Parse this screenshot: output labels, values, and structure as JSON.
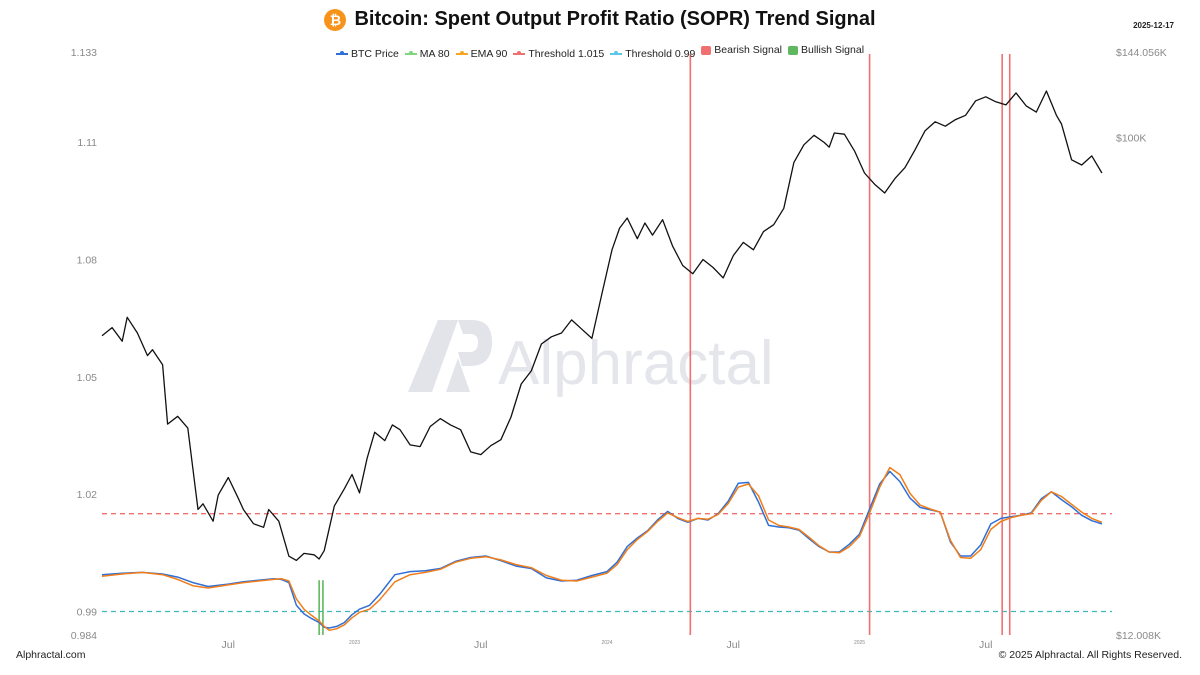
{
  "header": {
    "title": "Bitcoin: Spent Output Profit Ratio (SOPR) Trend Signal",
    "btc_symbol": "₿",
    "date": "2025-12-17"
  },
  "legend": [
    {
      "label": "BTC Price",
      "color": "#2F6FD6",
      "kind": "line"
    },
    {
      "label": "MA 80",
      "color": "#7ED67E",
      "kind": "line"
    },
    {
      "label": "EMA 90",
      "color": "#F5A623",
      "kind": "line"
    },
    {
      "label": "Threshold 1.015",
      "color": "#F07070",
      "kind": "line"
    },
    {
      "label": "Threshold 0.99",
      "color": "#5BC8E8",
      "kind": "line"
    },
    {
      "label": "Bearish Signal",
      "color": "#F07070",
      "kind": "box"
    },
    {
      "label": "Bullish Signal",
      "color": "#5FB85F",
      "kind": "box"
    }
  ],
  "watermark": "Alphractal",
  "footer": {
    "left": "Alphractal.com",
    "right": "© 2025 Alphractal. All Rights Reserved."
  },
  "chart_data": {
    "type": "line",
    "title": "Bitcoin: Spent Output Profit Ratio (SOPR) Trend Signal",
    "x_range": [
      2022.0,
      2026.0
    ],
    "left_axis": {
      "ylim": [
        0.984,
        1.133
      ],
      "ticks": [
        0.984,
        0.99,
        1.02,
        1.05,
        1.08,
        1.11,
        1.133
      ],
      "tick_labels": [
        "0.984",
        "0.99",
        "1.02",
        "1.05",
        "1.08",
        "1.11",
        "1.133"
      ]
    },
    "right_axis": {
      "scale": "log",
      "ylim": [
        12008,
        144056
      ],
      "ticks": [
        12008,
        100000,
        144056
      ],
      "tick_labels": [
        "$12.008K",
        "$100K",
        "$144.056K"
      ]
    },
    "x_ticks": [
      {
        "x": 2022.5,
        "label": "Jul",
        "small": false
      },
      {
        "x": 2023.0,
        "label": "2023",
        "small": true
      },
      {
        "x": 2023.5,
        "label": "Jul",
        "small": false
      },
      {
        "x": 2024.0,
        "label": "2024",
        "small": true
      },
      {
        "x": 2024.5,
        "label": "Jul",
        "small": false
      },
      {
        "x": 2025.0,
        "label": "2025",
        "small": true
      },
      {
        "x": 2025.5,
        "label": "Jul",
        "small": false
      }
    ],
    "thresholds": [
      {
        "name": "Threshold 1.015",
        "value": 1.015,
        "color": "#F07070"
      },
      {
        "name": "Threshold 0.99",
        "value": 0.99,
        "color": "#3CB8B8"
      }
    ],
    "series": [
      {
        "name": "BTC Price",
        "axis": "right",
        "color": "#111111",
        "x": [
          2022.0,
          2022.04,
          2022.08,
          2022.1,
          2022.14,
          2022.18,
          2022.2,
          2022.24,
          2022.26,
          2022.3,
          2022.34,
          2022.38,
          2022.4,
          2022.44,
          2022.46,
          2022.5,
          2022.54,
          2022.56,
          2022.6,
          2022.64,
          2022.66,
          2022.7,
          2022.74,
          2022.77,
          2022.8,
          2022.84,
          2022.86,
          2022.88,
          2022.92,
          2022.96,
          2022.99,
          2023.02,
          2023.05,
          2023.08,
          2023.12,
          2023.15,
          2023.18,
          2023.22,
          2023.26,
          2023.3,
          2023.34,
          2023.38,
          2023.42,
          2023.46,
          2023.5,
          2023.54,
          2023.58,
          2023.62,
          2023.66,
          2023.7,
          2023.74,
          2023.78,
          2023.82,
          2023.86,
          2023.9,
          2023.94,
          2023.98,
          2024.02,
          2024.05,
          2024.08,
          2024.12,
          2024.15,
          2024.18,
          2024.22,
          2024.26,
          2024.3,
          2024.34,
          2024.38,
          2024.42,
          2024.46,
          2024.5,
          2024.54,
          2024.58,
          2024.62,
          2024.66,
          2024.7,
          2024.74,
          2024.78,
          2024.82,
          2024.86,
          2024.88,
          2024.9,
          2024.94,
          2024.98,
          2025.02,
          2025.06,
          2025.1,
          2025.14,
          2025.18,
          2025.22,
          2025.26,
          2025.3,
          2025.34,
          2025.38,
          2025.42,
          2025.46,
          2025.5,
          2025.54,
          2025.58,
          2025.62,
          2025.66,
          2025.7,
          2025.74,
          2025.78,
          2025.8,
          2025.84,
          2025.88,
          2025.92,
          2025.96
        ],
        "values": [
          43000,
          44500,
          42000,
          46500,
          43500,
          39500,
          40500,
          38000,
          29500,
          30500,
          29000,
          20500,
          21000,
          19500,
          21800,
          23500,
          21500,
          20500,
          19300,
          19000,
          20500,
          19500,
          16800,
          16500,
          17000,
          16900,
          16600,
          17200,
          20800,
          22400,
          23800,
          22000,
          25500,
          28500,
          27500,
          29400,
          28800,
          27000,
          26800,
          29200,
          30200,
          29400,
          28800,
          26200,
          25900,
          26900,
          27600,
          30400,
          35000,
          37000,
          41500,
          42800,
          43500,
          46000,
          44200,
          42500,
          51500,
          62000,
          68000,
          71000,
          65000,
          69500,
          66000,
          70500,
          63000,
          58000,
          56000,
          59500,
          57500,
          55000,
          60500,
          64000,
          62000,
          67000,
          69000,
          74000,
          90000,
          97000,
          101000,
          98000,
          96000,
          102000,
          101500,
          94500,
          86000,
          82000,
          79000,
          84000,
          88000,
          95000,
          103000,
          107000,
          105000,
          108000,
          110000,
          117000,
          119000,
          116500,
          115000,
          121000,
          114500,
          111500,
          122000,
          110000,
          106000,
          91000,
          89000,
          92500,
          86000
        ]
      },
      {
        "name": "MA 80",
        "axis": "left",
        "color": "#2F6FD6",
        "x": [
          2022.0,
          2022.08,
          2022.16,
          2022.24,
          2022.3,
          2022.36,
          2022.42,
          2022.5,
          2022.56,
          2022.62,
          2022.68,
          2022.71,
          2022.74,
          2022.77,
          2022.8,
          2022.83,
          2022.86,
          2022.88,
          2022.9,
          2022.93,
          2022.96,
          2022.99,
          2023.02,
          2023.06,
          2023.1,
          2023.16,
          2023.22,
          2023.28,
          2023.34,
          2023.4,
          2023.46,
          2023.52,
          2023.58,
          2023.64,
          2023.7,
          2023.76,
          2023.82,
          2023.88,
          2023.94,
          2024.0,
          2024.04,
          2024.08,
          2024.12,
          2024.16,
          2024.2,
          2024.24,
          2024.28,
          2024.32,
          2024.36,
          2024.4,
          2024.44,
          2024.48,
          2024.52,
          2024.56,
          2024.6,
          2024.64,
          2024.68,
          2024.72,
          2024.76,
          2024.8,
          2024.84,
          2024.88,
          2024.92,
          2024.96,
          2025.0,
          2025.04,
          2025.08,
          2025.12,
          2025.16,
          2025.2,
          2025.24,
          2025.28,
          2025.32,
          2025.36,
          2025.4,
          2025.44,
          2025.48,
          2025.52,
          2025.56,
          2025.6,
          2025.64,
          2025.68,
          2025.72,
          2025.76,
          2025.8,
          2025.84,
          2025.88,
          2025.92,
          2025.96
        ],
        "values": [
          0.9994,
          0.9998,
          1.0,
          0.9996,
          0.9988,
          0.9974,
          0.9964,
          0.997,
          0.9976,
          0.998,
          0.9984,
          0.9982,
          0.9974,
          0.9916,
          0.9894,
          0.9882,
          0.9872,
          0.986,
          0.9858,
          0.9862,
          0.9872,
          0.9892,
          0.9906,
          0.9916,
          0.9944,
          0.9994,
          1.0002,
          1.0004,
          1.001,
          1.0028,
          1.0038,
          1.0042,
          1.003,
          1.0016,
          1.001,
          0.9986,
          0.9978,
          0.998,
          0.9992,
          1.0002,
          1.0026,
          1.0066,
          1.0088,
          1.0106,
          1.0134,
          1.0156,
          1.0138,
          1.0128,
          1.0138,
          1.0134,
          1.015,
          1.0182,
          1.0228,
          1.023,
          1.018,
          1.012,
          1.0116,
          1.0114,
          1.0108,
          1.0086,
          1.0066,
          1.0052,
          1.0052,
          1.0072,
          1.0098,
          1.0162,
          1.0226,
          1.0258,
          1.0232,
          1.019,
          1.0166,
          1.016,
          1.0154,
          1.0078,
          1.0042,
          1.0042,
          1.007,
          1.0124,
          1.0138,
          1.0142,
          1.0146,
          1.0152,
          1.0188,
          1.0206,
          1.0186,
          1.0168,
          1.0146,
          1.0132,
          1.0124
        ]
      },
      {
        "name": "EMA 90",
        "axis": "left",
        "color": "#F07D1A",
        "x": [
          2022.0,
          2022.08,
          2022.16,
          2022.24,
          2022.3,
          2022.36,
          2022.42,
          2022.5,
          2022.56,
          2022.62,
          2022.68,
          2022.71,
          2022.74,
          2022.77,
          2022.8,
          2022.83,
          2022.86,
          2022.88,
          2022.9,
          2022.93,
          2022.96,
          2022.99,
          2023.02,
          2023.06,
          2023.1,
          2023.16,
          2023.22,
          2023.28,
          2023.34,
          2023.4,
          2023.46,
          2023.52,
          2023.58,
          2023.64,
          2023.7,
          2023.76,
          2023.82,
          2023.88,
          2023.94,
          2024.0,
          2024.04,
          2024.08,
          2024.12,
          2024.16,
          2024.2,
          2024.24,
          2024.28,
          2024.32,
          2024.36,
          2024.4,
          2024.44,
          2024.48,
          2024.52,
          2024.56,
          2024.6,
          2024.64,
          2024.68,
          2024.72,
          2024.76,
          2024.8,
          2024.84,
          2024.88,
          2024.92,
          2024.96,
          2025.0,
          2025.04,
          2025.08,
          2025.12,
          2025.16,
          2025.2,
          2025.24,
          2025.28,
          2025.32,
          2025.36,
          2025.4,
          2025.44,
          2025.48,
          2025.52,
          2025.56,
          2025.6,
          2025.64,
          2025.68,
          2025.72,
          2025.76,
          2025.8,
          2025.84,
          2025.88,
          2025.92,
          2025.96
        ],
        "values": [
          0.999,
          0.9996,
          1.0,
          0.9994,
          0.9982,
          0.9966,
          0.996,
          0.9968,
          0.9974,
          0.9978,
          0.9982,
          0.9984,
          0.9978,
          0.9932,
          0.9906,
          0.989,
          0.9876,
          0.9862,
          0.9852,
          0.9856,
          0.9866,
          0.9884,
          0.9898,
          0.9906,
          0.993,
          0.9976,
          0.9994,
          1.0,
          1.0008,
          1.0026,
          1.0036,
          1.004,
          1.0032,
          1.002,
          1.0012,
          0.9992,
          0.998,
          0.9978,
          0.9988,
          0.9998,
          1.002,
          1.0058,
          1.0084,
          1.0104,
          1.013,
          1.0152,
          1.014,
          1.013,
          1.0138,
          1.0136,
          1.0148,
          1.0176,
          1.0218,
          1.0226,
          1.0196,
          1.0134,
          1.012,
          1.0116,
          1.011,
          1.009,
          1.0068,
          1.0052,
          1.005,
          1.0066,
          1.0092,
          1.0152,
          1.0218,
          1.0268,
          1.025,
          1.0202,
          1.0172,
          1.0162,
          1.0154,
          1.0082,
          1.0038,
          1.0036,
          1.0058,
          1.011,
          1.013,
          1.014,
          1.0146,
          1.015,
          1.0184,
          1.0206,
          1.0194,
          1.0174,
          1.0154,
          1.0138,
          1.0128
        ]
      }
    ],
    "signals": [
      {
        "type": "Bullish Signal",
        "x": 2022.86,
        "color": "#5FB85F"
      },
      {
        "type": "Bullish Signal",
        "x": 2022.875,
        "color": "#5FB85F"
      },
      {
        "type": "Bearish Signal",
        "x": 2024.33,
        "color": "#F07070"
      },
      {
        "type": "Bearish Signal",
        "x": 2025.04,
        "color": "#F07070"
      },
      {
        "type": "Bearish Signal",
        "x": 2025.565,
        "color": "#F07070"
      },
      {
        "type": "Bearish Signal",
        "x": 2025.595,
        "color": "#F07070"
      }
    ]
  }
}
